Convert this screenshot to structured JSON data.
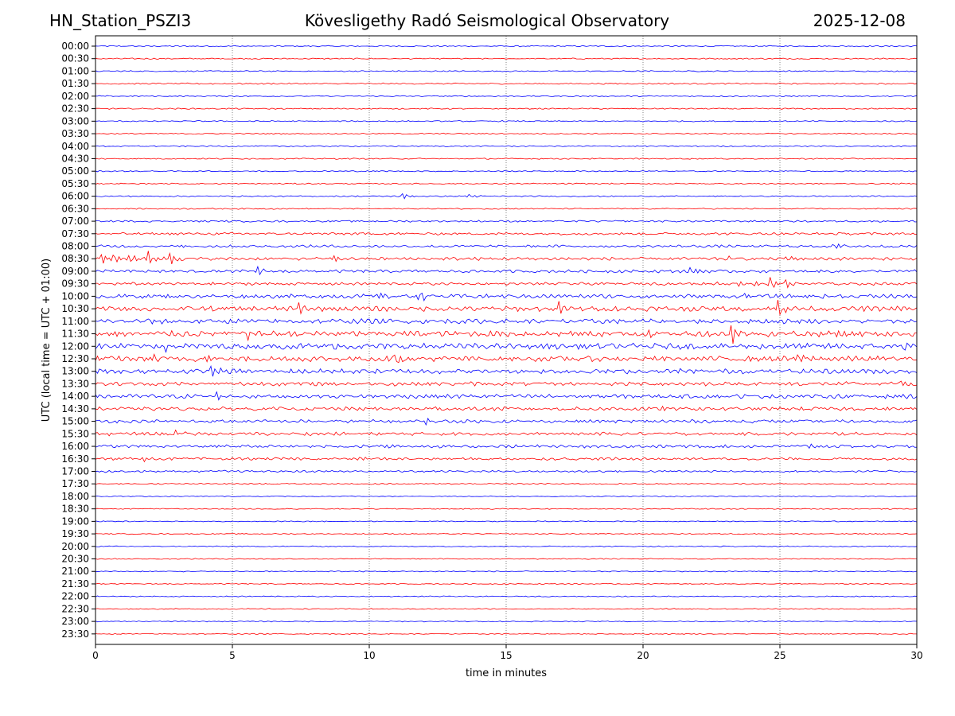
{
  "header": {
    "left": "HN_Station_PSZI3",
    "center": "Kövesligethy Radó Seismological Observatory",
    "right": "2025-12-08"
  },
  "chart_data": {
    "type": "line",
    "title": "Kövesligethy Radó Seismological Observatory",
    "xlabel": "time in minutes",
    "ylabel": "UTC (local time = UTC + 01:00)",
    "xlim": [
      0,
      30
    ],
    "xticks": [
      0,
      5,
      10,
      15,
      20,
      25,
      30
    ],
    "grid": "vertical dotted at 5-minute intervals",
    "colors": {
      "even_rows": "#0000ff",
      "odd_rows": "#ff0000"
    },
    "rows": [
      {
        "label": "00:00",
        "amp": 0.6
      },
      {
        "label": "00:30",
        "amp": 0.6
      },
      {
        "label": "01:00",
        "amp": 0.6
      },
      {
        "label": "01:30",
        "amp": 0.7
      },
      {
        "label": "02:00",
        "amp": 0.6
      },
      {
        "label": "02:30",
        "amp": 0.6
      },
      {
        "label": "03:00",
        "amp": 0.6
      },
      {
        "label": "03:30",
        "amp": 0.6
      },
      {
        "label": "04:00",
        "amp": 0.6
      },
      {
        "label": "04:30",
        "amp": 0.6
      },
      {
        "label": "05:00",
        "amp": 0.6
      },
      {
        "label": "05:30",
        "amp": 0.6
      },
      {
        "label": "06:00",
        "amp": 0.6,
        "events": [
          {
            "t": 11.2,
            "a": 5
          },
          {
            "t": 13.6,
            "a": 4
          }
        ]
      },
      {
        "label": "06:30",
        "amp": 0.6
      },
      {
        "label": "07:00",
        "amp": 0.9
      },
      {
        "label": "07:30",
        "amp": 1.2
      },
      {
        "label": "08:00",
        "amp": 1.3,
        "events": [
          {
            "t": 27,
            "a": 5
          }
        ]
      },
      {
        "label": "08:30",
        "amp": 1.5,
        "events": [
          {
            "t": 0.2,
            "a": 9
          },
          {
            "t": 0.6,
            "a": 10
          },
          {
            "t": 1.3,
            "a": 9
          },
          {
            "t": 1.9,
            "a": 11
          },
          {
            "t": 2.7,
            "a": 10
          },
          {
            "t": 8.7,
            "a": 5
          },
          {
            "t": 23,
            "a": 4
          },
          {
            "t": 25.3,
            "a": 5
          }
        ]
      },
      {
        "label": "09:00",
        "amp": 1.5,
        "events": [
          {
            "t": 5.9,
            "a": 7
          },
          {
            "t": 21.8,
            "a": 10
          }
        ]
      },
      {
        "label": "09:30",
        "amp": 1.4,
        "events": [
          {
            "t": 22.8,
            "a": 5
          },
          {
            "t": 23.3,
            "a": 6
          },
          {
            "t": 24.0,
            "a": 6
          },
          {
            "t": 24.6,
            "a": 12
          },
          {
            "t": 25.2,
            "a": 6
          }
        ]
      },
      {
        "label": "10:00",
        "amp": 2.0,
        "events": [
          {
            "t": 10.4,
            "a": 7
          },
          {
            "t": 11.8,
            "a": 8
          },
          {
            "t": 23.7,
            "a": 6
          }
        ]
      },
      {
        "label": "10:30",
        "amp": 2.5,
        "events": [
          {
            "t": 7.4,
            "a": 7
          },
          {
            "t": 16.9,
            "a": 8
          },
          {
            "t": 24.9,
            "a": 13
          }
        ]
      },
      {
        "label": "11:00",
        "amp": 2.3,
        "events": [
          {
            "t": 2.0,
            "a": 9
          }
        ]
      },
      {
        "label": "11:30",
        "amp": 2.8,
        "events": [
          {
            "t": 5.5,
            "a": 9
          },
          {
            "t": 20.2,
            "a": 8
          },
          {
            "t": 23.2,
            "a": 15
          },
          {
            "t": 27.0,
            "a": 9
          }
        ]
      },
      {
        "label": "12:00",
        "amp": 2.8,
        "events": [
          {
            "t": 2.5,
            "a": 9
          },
          {
            "t": 8.6,
            "a": 6
          },
          {
            "t": 29.6,
            "a": 7
          }
        ]
      },
      {
        "label": "12:30",
        "amp": 2.6,
        "events": [
          {
            "t": 2.1,
            "a": 8
          },
          {
            "t": 4.1,
            "a": 7
          },
          {
            "t": 11.0,
            "a": 7
          },
          {
            "t": 25.6,
            "a": 10
          }
        ]
      },
      {
        "label": "13:00",
        "amp": 2.3,
        "events": [
          {
            "t": 0.1,
            "a": 8
          },
          {
            "t": 4.2,
            "a": 11
          },
          {
            "t": 21.2,
            "a": 5
          }
        ]
      },
      {
        "label": "13:30",
        "amp": 2.0,
        "events": [
          {
            "t": 29.3,
            "a": 6
          }
        ]
      },
      {
        "label": "14:00",
        "amp": 2.0,
        "events": [
          {
            "t": 4.4,
            "a": 6
          },
          {
            "t": 14.6,
            "a": 5
          }
        ]
      },
      {
        "label": "14:30",
        "amp": 1.8,
        "events": [
          {
            "t": 12.3,
            "a": 5
          },
          {
            "t": 20.8,
            "a": 6
          }
        ]
      },
      {
        "label": "15:00",
        "amp": 1.6,
        "events": [
          {
            "t": 12.0,
            "a": 6
          }
        ]
      },
      {
        "label": "15:30",
        "amp": 1.6,
        "events": [
          {
            "t": 0.3,
            "a": 5
          },
          {
            "t": 2.9,
            "a": 5
          }
        ]
      },
      {
        "label": "16:00",
        "amp": 1.5,
        "events": [
          {
            "t": 10.5,
            "a": 5
          },
          {
            "t": 26.1,
            "a": 6
          }
        ]
      },
      {
        "label": "16:30",
        "amp": 1.3,
        "events": [
          {
            "t": 1.7,
            "a": 5
          },
          {
            "t": 9.6,
            "a": 4
          }
        ]
      },
      {
        "label": "17:00",
        "amp": 1.0
      },
      {
        "label": "17:30",
        "amp": 0.6
      },
      {
        "label": "18:00",
        "amp": 0.5
      },
      {
        "label": "18:30",
        "amp": 0.5
      },
      {
        "label": "19:00",
        "amp": 0.5
      },
      {
        "label": "19:30",
        "amp": 0.5
      },
      {
        "label": "20:00",
        "amp": 0.5
      },
      {
        "label": "20:30",
        "amp": 0.5
      },
      {
        "label": "21:00",
        "amp": 0.5
      },
      {
        "label": "21:30",
        "amp": 0.5
      },
      {
        "label": "22:00",
        "amp": 0.5
      },
      {
        "label": "22:30",
        "amp": 0.5
      },
      {
        "label": "23:00",
        "amp": 0.5
      },
      {
        "label": "23:30",
        "amp": 0.5
      }
    ]
  }
}
